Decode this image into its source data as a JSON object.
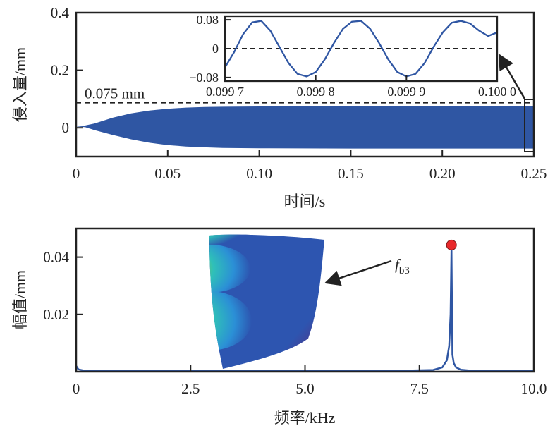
{
  "colors": {
    "series": "#2f56a3",
    "axis": "#222222",
    "peak_marker": "#e8282b",
    "dashed": "#222222"
  },
  "chart_data": [
    {
      "id": "time-domain",
      "type": "area",
      "title": "",
      "xlabel": "时间/s",
      "ylabel": "侵入量/mm",
      "xlim": [
        0,
        0.25
      ],
      "ylim": [
        -0.1,
        0.4
      ],
      "xticks": [
        0,
        0.05,
        0.1,
        0.15,
        0.2,
        0.25
      ],
      "xtick_labels": [
        "0",
        "0.05",
        "0.10",
        "0.15",
        "0.20",
        "0.25"
      ],
      "yticks": [
        0,
        0.2,
        0.4
      ],
      "ytick_labels": [
        "0",
        "0.2",
        "0.4"
      ],
      "grid": false,
      "series": [
        {
          "name": "侵入量 envelope",
          "description": "Oscillation envelope growing from ~0 to a steady ±0.075 mm",
          "x": [
            0,
            0.005,
            0.01,
            0.02,
            0.03,
            0.04,
            0.05,
            0.06,
            0.07,
            0.08,
            0.1,
            0.15,
            0.2,
            0.25
          ],
          "upper": [
            0.005,
            0.008,
            0.015,
            0.035,
            0.05,
            0.06,
            0.066,
            0.07,
            0.072,
            0.073,
            0.074,
            0.075,
            0.075,
            0.075
          ],
          "lower": [
            0.005,
            0.002,
            -0.008,
            -0.025,
            -0.04,
            -0.052,
            -0.06,
            -0.065,
            -0.068,
            -0.07,
            -0.071,
            -0.072,
            -0.072,
            -0.072
          ]
        }
      ],
      "reference_line": {
        "y": 0.075,
        "style": "dashed",
        "label": "0.075 mm"
      },
      "highlight_box": {
        "x_range": [
          0.2487,
          0.25
        ],
        "note": "zoomed region shown in inset"
      },
      "inset": {
        "type": "line",
        "xlim": [
          0.0997,
          0.1
        ],
        "ylim": [
          -0.09,
          0.09
        ],
        "xticks": [
          0.0997,
          0.0998,
          0.0999,
          0.1
        ],
        "xtick_labels": [
          "0.099 7",
          "0.099 8",
          "0.099 9",
          "0.100 0"
        ],
        "yticks": [
          -0.08,
          0,
          0.08
        ],
        "ytick_labels": [
          "−0.08",
          "0",
          "0.08"
        ],
        "reference_line": {
          "y": 0,
          "style": "dashed"
        },
        "series": [
          {
            "name": "侵入量",
            "amplitude": 0.077,
            "frequency_hz": 8200,
            "phase_note": "sinusoid; peaks near 0.09973, 0.09985, 0.09997; troughs near 0.09979, 0.09991",
            "x": [
              0.0997,
              0.09971,
              0.09972,
              0.09973,
              0.09974,
              0.09975,
              0.09976,
              0.09977,
              0.09978,
              0.09979,
              0.0998,
              0.09981,
              0.09982,
              0.09983,
              0.09984,
              0.09985,
              0.09986,
              0.09987,
              0.09988,
              0.09989,
              0.0999,
              0.09991,
              0.09992,
              0.09993,
              0.09994,
              0.09995,
              0.09996,
              0.09997,
              0.09998,
              0.09999,
              0.1
            ],
            "y": [
              -0.052,
              -0.01,
              0.04,
              0.073,
              0.077,
              0.05,
              0.005,
              -0.04,
              -0.07,
              -0.077,
              -0.065,
              -0.03,
              0.015,
              0.055,
              0.075,
              0.077,
              0.055,
              0.015,
              -0.03,
              -0.065,
              -0.077,
              -0.07,
              -0.04,
              0.005,
              0.045,
              0.072,
              0.077,
              0.07,
              0.05,
              0.035,
              0.045
            ]
          }
        ]
      }
    },
    {
      "id": "frequency-domain",
      "type": "line",
      "title": "",
      "xlabel": "频率/kHz",
      "ylabel": "幅值/mm",
      "xlim": [
        0,
        10
      ],
      "ylim": [
        0,
        0.05
      ],
      "xticks": [
        0,
        2.5,
        5.0,
        7.5,
        10.0
      ],
      "xtick_labels": [
        "0",
        "2.5",
        "5.0",
        "7.5",
        "10.0"
      ],
      "yticks": [
        0.02,
        0.04
      ],
      "ytick_labels": [
        "0.02",
        "0.04"
      ],
      "grid": false,
      "series": [
        {
          "name": "幅值",
          "x": [
            0,
            0.05,
            0.2,
            1,
            3,
            5,
            7,
            7.8,
            8.0,
            8.1,
            8.15,
            8.18,
            8.2,
            8.22,
            8.25,
            8.3,
            8.4,
            8.6,
            9,
            10
          ],
          "y": [
            0.002,
            0.0008,
            0.0003,
            0.0002,
            0.0002,
            0.0002,
            0.0003,
            0.0006,
            0.0015,
            0.004,
            0.009,
            0.02,
            0.0435,
            0.006,
            0.003,
            0.0015,
            0.0007,
            0.0004,
            0.0003,
            0.0002
          ]
        }
      ],
      "peak": {
        "x": 8.2,
        "y": 0.0435,
        "marker": "red-circle"
      },
      "annotation": {
        "label_main": "f",
        "label_sub": "b3",
        "arrow_to": "mode-shape-image"
      },
      "inset_image": {
        "description": "blade mode shape contour (third bending mode)",
        "dominant_color": "#2d55b0"
      }
    }
  ]
}
